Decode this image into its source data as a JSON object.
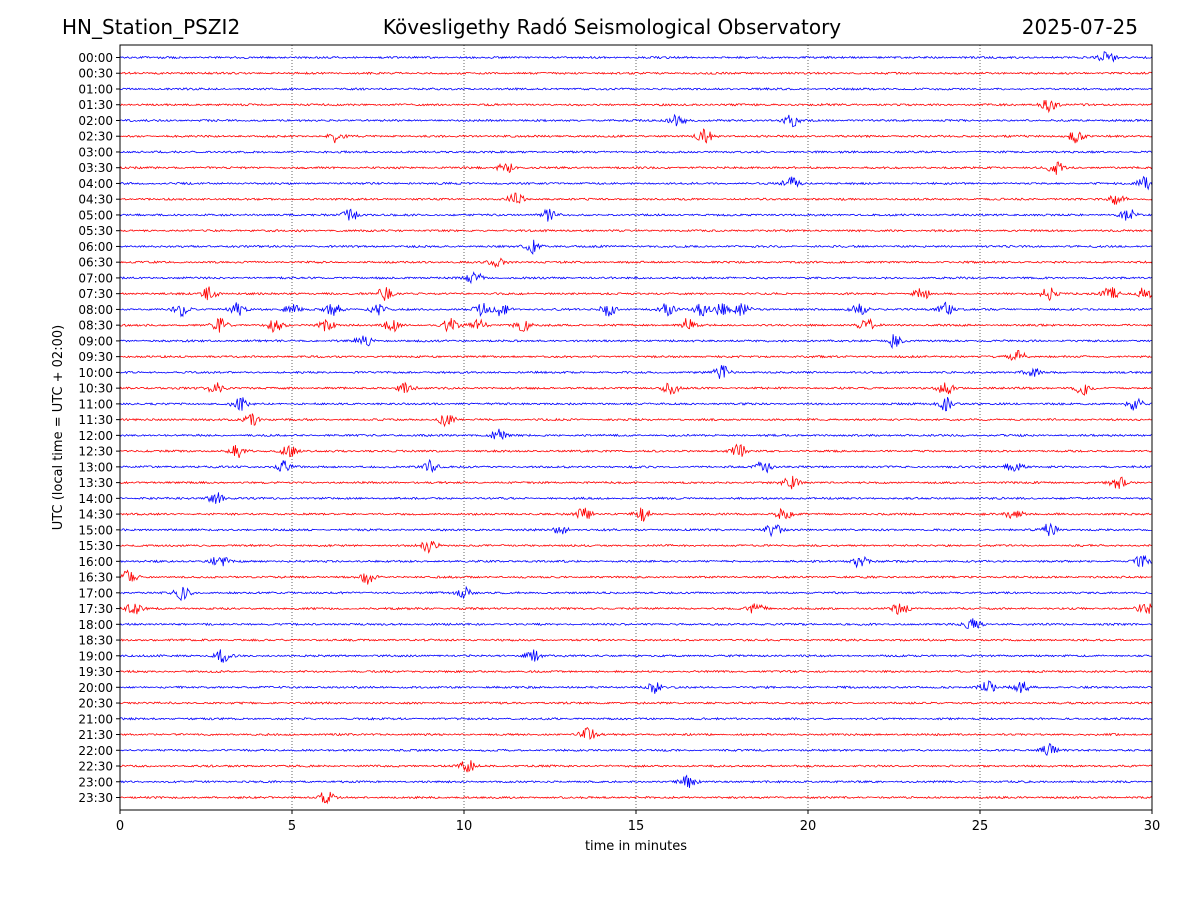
{
  "header": {
    "station": "HN_Station_PSZI2",
    "title": "Kövesligethy Radó Seismological Observatory",
    "date": "2025-07-25"
  },
  "chart_data": {
    "type": "line",
    "title": "Kövesligethy Radó Seismological Observatory",
    "xlabel": "time in minutes",
    "ylabel": "UTC (local time = UTC + 02:00)",
    "xlim": [
      0,
      30
    ],
    "x_ticks": [
      "0",
      "5",
      "10",
      "15",
      "20",
      "25",
      "30"
    ],
    "x_tick_values": [
      0,
      5,
      10,
      15,
      20,
      25,
      30
    ],
    "rows": [
      "00:00",
      "00:30",
      "01:00",
      "01:30",
      "02:00",
      "02:30",
      "03:00",
      "03:30",
      "04:00",
      "04:30",
      "05:00",
      "05:30",
      "06:00",
      "06:30",
      "07:00",
      "07:30",
      "08:00",
      "08:30",
      "09:00",
      "09:30",
      "10:00",
      "10:30",
      "11:00",
      "11:30",
      "12:00",
      "12:30",
      "13:00",
      "13:30",
      "14:00",
      "14:30",
      "15:00",
      "15:30",
      "16:00",
      "16:30",
      "17:00",
      "17:30",
      "18:00",
      "18:30",
      "19:00",
      "19:30",
      "20:00",
      "20:30",
      "21:00",
      "21:30",
      "22:00",
      "22:30",
      "23:00",
      "23:30"
    ],
    "colors": [
      "#0000ff",
      "#ff0000"
    ],
    "grid": "vertical dotted lines at major x ticks",
    "events": [
      {
        "row": "00:00",
        "t": [
          28.7
        ]
      },
      {
        "row": "01:30",
        "t": [
          27.0
        ]
      },
      {
        "row": "02:00",
        "t": [
          16.2,
          19.5
        ]
      },
      {
        "row": "02:30",
        "t": [
          6.3,
          17.0,
          27.8
        ]
      },
      {
        "row": "03:30",
        "t": [
          11.2,
          27.2
        ]
      },
      {
        "row": "04:00",
        "t": [
          19.5,
          29.8
        ]
      },
      {
        "row": "04:30",
        "t": [
          11.5,
          29.0
        ]
      },
      {
        "row": "05:00",
        "t": [
          6.7,
          12.5,
          29.3
        ]
      },
      {
        "row": "06:00",
        "t": [
          12.0
        ]
      },
      {
        "row": "06:30",
        "t": [
          11.0
        ]
      },
      {
        "row": "07:00",
        "t": [
          10.3
        ]
      },
      {
        "row": "07:30",
        "t": [
          2.6,
          7.7,
          23.3,
          27.0,
          28.8,
          29.8
        ]
      },
      {
        "row": "08:00",
        "t": [
          1.8,
          3.4,
          5.0,
          6.2,
          7.5,
          10.5,
          11.1,
          14.2,
          15.9,
          16.9,
          17.5,
          18.1,
          21.5,
          24.0
        ]
      },
      {
        "row": "08:30",
        "t": [
          2.9,
          4.5,
          6.0,
          7.9,
          9.6,
          10.4,
          11.7,
          16.5,
          21.7
        ]
      },
      {
        "row": "09:00",
        "t": [
          7.1,
          22.5
        ]
      },
      {
        "row": "09:30",
        "t": [
          26.1
        ]
      },
      {
        "row": "10:00",
        "t": [
          17.5,
          26.5
        ]
      },
      {
        "row": "10:30",
        "t": [
          2.8,
          8.3,
          16.0,
          24.0,
          28.0
        ]
      },
      {
        "row": "11:00",
        "t": [
          3.5,
          24.0,
          29.5
        ]
      },
      {
        "row": "11:30",
        "t": [
          3.8,
          9.5
        ]
      },
      {
        "row": "12:00",
        "t": [
          11.0
        ]
      },
      {
        "row": "12:30",
        "t": [
          3.4,
          4.9,
          18.0
        ]
      },
      {
        "row": "13:00",
        "t": [
          4.8,
          9.0,
          18.7,
          26.0
        ]
      },
      {
        "row": "13:30",
        "t": [
          19.5,
          29.0
        ]
      },
      {
        "row": "14:00",
        "t": [
          2.8
        ]
      },
      {
        "row": "14:30",
        "t": [
          13.5,
          15.2,
          19.3,
          26.0
        ]
      },
      {
        "row": "15:00",
        "t": [
          12.8,
          19.0,
          27.0
        ]
      },
      {
        "row": "15:30",
        "t": [
          9.0
        ]
      },
      {
        "row": "16:00",
        "t": [
          2.9,
          21.5,
          29.7
        ]
      },
      {
        "row": "16:30",
        "t": [
          0.25,
          7.2
        ]
      },
      {
        "row": "17:00",
        "t": [
          1.8,
          10.0
        ]
      },
      {
        "row": "17:30",
        "t": [
          0.4,
          18.5,
          22.7,
          29.8
        ]
      },
      {
        "row": "18:00",
        "t": [
          24.8
        ]
      },
      {
        "row": "19:00",
        "t": [
          3.0,
          12.0
        ]
      },
      {
        "row": "20:00",
        "t": [
          15.5,
          25.2,
          26.2
        ]
      },
      {
        "row": "21:30",
        "t": [
          13.6
        ]
      },
      {
        "row": "22:00",
        "t": [
          27.0
        ]
      },
      {
        "row": "22:30",
        "t": [
          10.1
        ]
      },
      {
        "row": "23:00",
        "t": [
          16.5
        ]
      },
      {
        "row": "23:30",
        "t": [
          6.0
        ]
      }
    ]
  }
}
